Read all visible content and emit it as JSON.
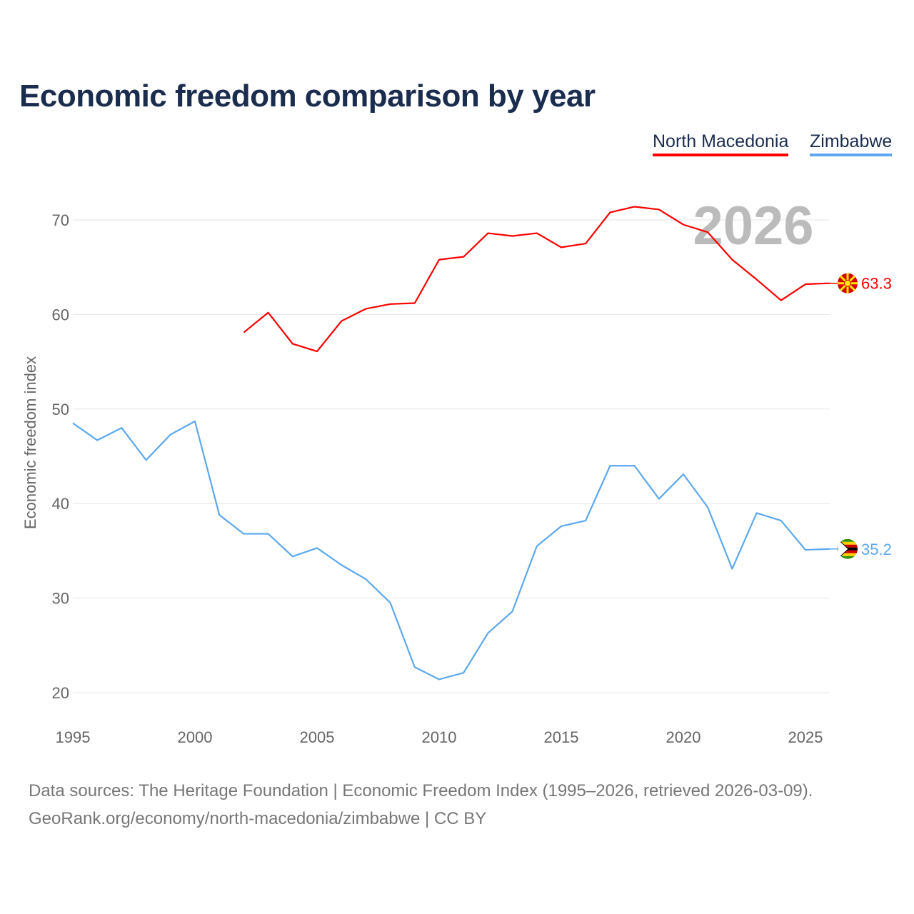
{
  "title": "Economic freedom comparison by year",
  "footer": {
    "line1": "Data sources: The Heritage Foundation | Economic Freedom Index (1995–2026, retrieved 2026-03-09).",
    "line2": "GeoRank.org/economy/north-macedonia/zimbabwe | CC BY"
  },
  "chart_data": {
    "type": "line",
    "title": "Economic freedom comparison by year",
    "xlabel": "",
    "ylabel": "Economic freedom index",
    "xlim": [
      1995,
      2026
    ],
    "ylim": [
      20,
      72
    ],
    "xticks": [
      "1995",
      "2000",
      "2005",
      "2010",
      "2015",
      "2020",
      "2025"
    ],
    "yticks": [
      "20",
      "30",
      "40",
      "50",
      "60",
      "70"
    ],
    "year_watermark": "2026",
    "legend_position": "top-right",
    "series": [
      {
        "name": "North Macedonia",
        "color": "#ff0000",
        "end_label": "63.3",
        "flag_icon": "north-macedonia-flag-icon",
        "x": [
          2002,
          2003,
          2004,
          2005,
          2006,
          2007,
          2008,
          2009,
          2010,
          2011,
          2012,
          2013,
          2014,
          2015,
          2016,
          2017,
          2018,
          2019,
          2020,
          2021,
          2022,
          2023,
          2024,
          2025,
          2026
        ],
        "values": [
          58.1,
          60.2,
          56.9,
          56.1,
          59.3,
          60.6,
          61.1,
          61.2,
          65.8,
          66.1,
          68.6,
          68.3,
          68.6,
          67.1,
          67.5,
          70.8,
          71.4,
          71.1,
          69.5,
          68.7,
          65.8,
          63.7,
          61.5,
          63.2,
          63.3
        ]
      },
      {
        "name": "Zimbabwe",
        "color": "#5ca8ee",
        "end_label": "35.2",
        "flag_icon": "zimbabwe-flag-icon",
        "x": [
          1995,
          1996,
          1997,
          1998,
          1999,
          2000,
          2001,
          2002,
          2003,
          2004,
          2005,
          2006,
          2007,
          2008,
          2009,
          2010,
          2011,
          2012,
          2013,
          2014,
          2015,
          2016,
          2017,
          2018,
          2019,
          2020,
          2021,
          2022,
          2023,
          2024,
          2025,
          2026
        ],
        "values": [
          48.5,
          46.7,
          48.0,
          44.6,
          47.3,
          48.7,
          38.8,
          36.8,
          36.8,
          34.4,
          35.3,
          33.5,
          32.0,
          29.5,
          22.7,
          21.4,
          22.1,
          26.3,
          28.6,
          35.5,
          37.6,
          38.2,
          44.0,
          44.0,
          40.5,
          43.1,
          39.6,
          33.1,
          39.0,
          38.2,
          35.1,
          35.2
        ]
      }
    ]
  }
}
